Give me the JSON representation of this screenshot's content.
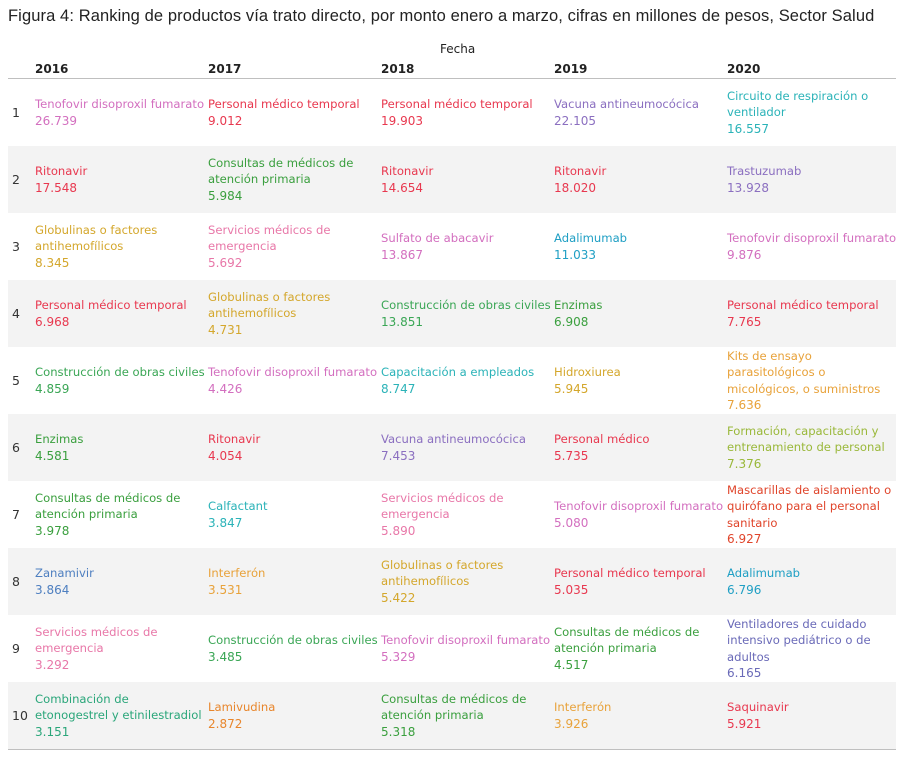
{
  "title": "Figura 4: Ranking de productos vía trato directo, por monto enero a marzo, cifras en millones de pesos, Sector Salud",
  "column_group_label": "Fecha",
  "chart_data": {
    "type": "table",
    "columns": [
      "2016",
      "2017",
      "2018",
      "2019",
      "2020"
    ],
    "ranks": [
      1,
      2,
      3,
      4,
      5,
      6,
      7,
      8,
      9,
      10
    ],
    "cells": [
      [
        {
          "name": "Tenofovir disoproxil fumarato",
          "value": "26.739",
          "color": "#d36fbf"
        },
        {
          "name": "Personal médico temporal",
          "value": "9.012",
          "color": "#e8384f"
        },
        {
          "name": "Personal médico temporal",
          "value": "19.903",
          "color": "#e8384f"
        },
        {
          "name": "Vacuna antineumocócica",
          "value": "22.105",
          "color": "#8b6fc0"
        },
        {
          "name": "Circuito de respiración o ventilador",
          "value": "16.557",
          "color": "#2bb3b8"
        }
      ],
      [
        {
          "name": "Ritonavir",
          "value": "17.548",
          "color": "#e8384f"
        },
        {
          "name": "Consultas de médicos de atención primaria",
          "value": "5.984",
          "color": "#3a9f3e"
        },
        {
          "name": "Ritonavir",
          "value": "14.654",
          "color": "#e8384f"
        },
        {
          "name": "Ritonavir",
          "value": "18.020",
          "color": "#e8384f"
        },
        {
          "name": "Trastuzumab",
          "value": "13.928",
          "color": "#8b6fc0"
        }
      ],
      [
        {
          "name": "Globulinas o factores antihemofílicos",
          "value": "8.345",
          "color": "#d4a72c"
        },
        {
          "name": "Servicios médicos de emergencia",
          "value": "5.692",
          "color": "#e877a8"
        },
        {
          "name": "Sulfato de abacavir",
          "value": "13.867",
          "color": "#d36fbf"
        },
        {
          "name": "Adalimumab",
          "value": "11.033",
          "color": "#1f9fc4"
        },
        {
          "name": "Tenofovir disoproxil fumarato",
          "value": "9.876",
          "color": "#d36fbf"
        }
      ],
      [
        {
          "name": "Personal médico temporal",
          "value": "6.968",
          "color": "#e8384f"
        },
        {
          "name": "Globulinas o factores antihemofílicos",
          "value": "4.731",
          "color": "#d4a72c"
        },
        {
          "name": "Construcción de obras civiles",
          "value": "13.851",
          "color": "#3aa655"
        },
        {
          "name": "Enzimas",
          "value": "6.908",
          "color": "#3a9f3e"
        },
        {
          "name": "Personal médico temporal",
          "value": "7.765",
          "color": "#e8384f"
        }
      ],
      [
        {
          "name": "Construcción de obras civiles",
          "value": "4.859",
          "color": "#3aa655"
        },
        {
          "name": "Tenofovir disoproxil fumarato",
          "value": "4.426",
          "color": "#d36fbf"
        },
        {
          "name": "Capacitación a empleados",
          "value": "8.747",
          "color": "#2bb3b8"
        },
        {
          "name": "Hidroxiurea",
          "value": "5.945",
          "color": "#d4a72c"
        },
        {
          "name": "Kits de ensayo parasitológicos o micológicos, o suministros",
          "value": "7.636",
          "color": "#e8a23a"
        }
      ],
      [
        {
          "name": "Enzimas",
          "value": "4.581",
          "color": "#3a9f3e"
        },
        {
          "name": "Ritonavir",
          "value": "4.054",
          "color": "#e8384f"
        },
        {
          "name": "Vacuna antineumocócica",
          "value": "7.453",
          "color": "#8b6fc0"
        },
        {
          "name": "Personal médico",
          "value": "5.735",
          "color": "#e8384f"
        },
        {
          "name": "Formación, capacitación y entrenamiento de personal",
          "value": "7.376",
          "color": "#9ab83a"
        }
      ],
      [
        {
          "name": "Consultas de médicos de atención primaria",
          "value": "3.978",
          "color": "#3a9f3e"
        },
        {
          "name": "Calfactant",
          "value": "3.847",
          "color": "#2bb3b8"
        },
        {
          "name": "Servicios médicos de emergencia",
          "value": "5.890",
          "color": "#e877a8"
        },
        {
          "name": "Tenofovir disoproxil fumarato",
          "value": "5.080",
          "color": "#d36fbf"
        },
        {
          "name": "Mascarillas de aislamiento o quirófano para el personal sanitario",
          "value": "6.927",
          "color": "#e0452b"
        }
      ],
      [
        {
          "name": "Zanamivir",
          "value": "3.864",
          "color": "#4e7fc0"
        },
        {
          "name": "Interferón",
          "value": "3.531",
          "color": "#e8a23a"
        },
        {
          "name": "Globulinas o factores antihemofílicos",
          "value": "5.422",
          "color": "#d4a72c"
        },
        {
          "name": "Personal médico temporal",
          "value": "5.035",
          "color": "#e8384f"
        },
        {
          "name": "Adalimumab",
          "value": "6.796",
          "color": "#1f9fc4"
        }
      ],
      [
        {
          "name": "Servicios médicos de emergencia",
          "value": "3.292",
          "color": "#e877a8"
        },
        {
          "name": "Construcción de obras civiles",
          "value": "3.485",
          "color": "#3aa655"
        },
        {
          "name": "Tenofovir disoproxil fumarato",
          "value": "5.329",
          "color": "#d36fbf"
        },
        {
          "name": "Consultas de médicos de atención primaria",
          "value": "4.517",
          "color": "#3a9f3e"
        },
        {
          "name": "Ventiladores de cuidado intensivo pediátrico o de adultos",
          "value": "6.165",
          "color": "#6a6ab8"
        }
      ],
      [
        {
          "name": "Combinación de etonogestrel y etinilestradiol",
          "value": "3.151",
          "color": "#2aa67a"
        },
        {
          "name": "Lamivudina",
          "value": "2.872",
          "color": "#e8862c"
        },
        {
          "name": "Consultas de médicos de atención primaria",
          "value": "5.318",
          "color": "#3a9f3e"
        },
        {
          "name": "Interferón",
          "value": "3.926",
          "color": "#e8a23a"
        },
        {
          "name": "Saquinavir",
          "value": "5.921",
          "color": "#e8384f"
        }
      ]
    ]
  }
}
